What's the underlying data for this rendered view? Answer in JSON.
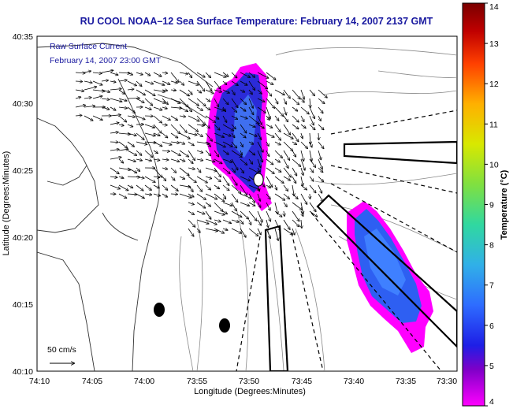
{
  "title": "RU COOL  NOAA–12  Sea Surface Temperature:  February 14, 2007 2137 GMT",
  "current_legend": {
    "line1": "Raw Surface Current",
    "line2": "February 14, 2007 23:00 GMT",
    "scale_label": "50 cm/s"
  },
  "axes": {
    "xlabel": "Longitude (Degrees:Minutes)",
    "ylabel": "Latitude (Degrees:Minutes)",
    "x_ticks": [
      "74:10",
      "74:05",
      "74:00",
      "73:55",
      "73:50",
      "73:45",
      "73:40",
      "73:35",
      "73:30"
    ],
    "y_ticks": [
      "40:35",
      "40:30",
      "40:25",
      "40:20",
      "40:15",
      "40:10"
    ]
  },
  "colorbar": {
    "label": "Temperature (°C)",
    "ticks": [
      "14",
      "13",
      "12",
      "11",
      "10",
      "9",
      "8",
      "7",
      "6",
      "5",
      "4"
    ],
    "min": 4,
    "max": 14,
    "colors": [
      "#ff00ff",
      "#7f00c8",
      "#1e1ee6",
      "#2e6cff",
      "#30b0e8",
      "#30d8a0",
      "#80e040",
      "#d8e800",
      "#ffb000",
      "#ff4000",
      "#c00000",
      "#7a0000"
    ]
  },
  "chart_data": {
    "type": "map",
    "xlim": [
      "74:10",
      "73:30"
    ],
    "ylim": [
      "40:10",
      "40:35"
    ],
    "colorbar_range": [
      4,
      14
    ]
  }
}
